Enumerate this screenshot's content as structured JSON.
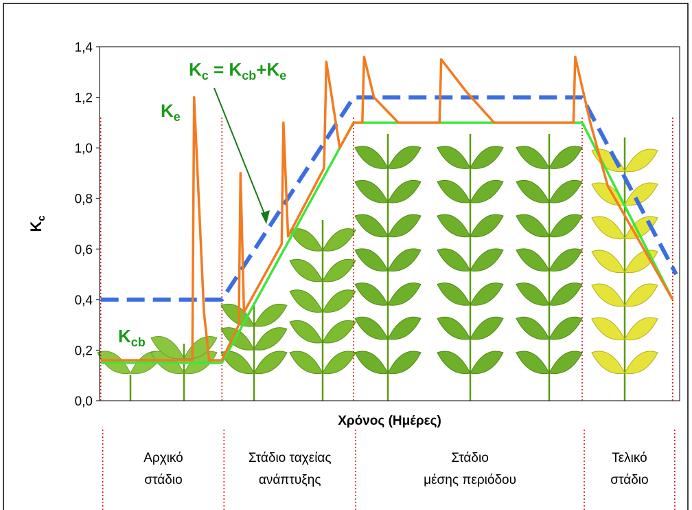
{
  "chart_data": {
    "type": "line",
    "y_label": [
      "K",
      "c"
    ],
    "x_label": "Χρόνος (Ημέρες)",
    "xlim": [
      0,
      100
    ],
    "ylim": [
      0,
      1.4
    ],
    "yticks": [
      {
        "value": 0,
        "label": "0,0"
      },
      {
        "value": 0.2,
        "label": "0,2"
      },
      {
        "value": 0.4,
        "label": "0,4"
      },
      {
        "value": 0.6,
        "label": "0,6"
      },
      {
        "value": 0.8,
        "label": "0,8"
      },
      {
        "value": 1.0,
        "label": "1,0"
      },
      {
        "value": 1.2,
        "label": "1,2"
      },
      {
        "value": 1.4,
        "label": "1,4"
      }
    ],
    "series": [
      {
        "color": "#3b6fe0",
        "dashed": true,
        "x": [
          0.2,
          21.1,
          43.8,
          83.2,
          99.4
        ],
        "values": [
          0.4,
          0.4,
          1.2,
          1.2,
          0.5
        ]
      },
      {
        "color": "#3ce63c",
        "label": [
          "K",
          "cb"
        ],
        "x": [
          0.2,
          21.1,
          43.8,
          83.2,
          98.8
        ],
        "values": [
          0.15,
          0.15,
          1.1,
          1.1,
          0.4
        ]
      },
      {
        "color": "#f47a20",
        "label": [
          "K",
          "e"
        ],
        "x": [
          0.2,
          16,
          16.3,
          18,
          18.9,
          21.1,
          24,
          24.3,
          24.9,
          31.4,
          31.7,
          32.5,
          38.7,
          39.1,
          41.4,
          43.8,
          45.3,
          45.6,
          47.3,
          51.5,
          58.6,
          58.9,
          63.3,
          68,
          81.7,
          82,
          84.6,
          87.6,
          98.8
        ],
        "values": [
          0.16,
          0.16,
          1.2,
          0.35,
          0.16,
          0.16,
          0.3,
          0.9,
          0.35,
          0.62,
          1.1,
          0.65,
          0.92,
          1.34,
          1.0,
          1.1,
          1.1,
          1.36,
          1.2,
          1.1,
          1.1,
          1.35,
          1.22,
          1.1,
          1.1,
          1.36,
          1.1,
          0.85,
          0.4
        ]
      }
    ],
    "annotation": [
      "K",
      "c",
      " = K",
      "cb",
      "+K",
      "e"
    ],
    "stage_x": [
      0.2,
      21.1,
      43.8,
      83.2,
      98.8
    ],
    "stages": [
      [
        "Αρχικό",
        "στάδιο"
      ],
      [
        "Στάδιο ταχείας",
        "ανάπτυξης"
      ],
      [
        "Στάδιο",
        "μέσης περιόδου"
      ],
      [
        "Τελικό",
        "στάδιο"
      ]
    ]
  }
}
